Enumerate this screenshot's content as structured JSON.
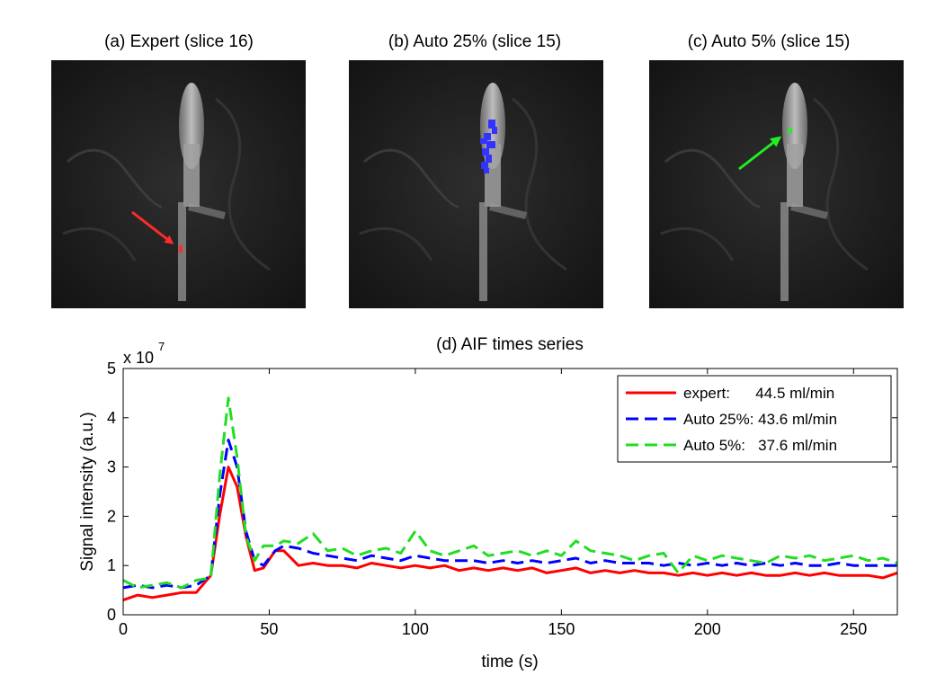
{
  "panels": [
    {
      "title": "(a) Expert (slice 16)",
      "roi_color": "#ff2a2a",
      "arrow_color": "#ff2a2a"
    },
    {
      "title": "(b) Auto 25% (slice 15)",
      "roi_color": "#3333ff"
    },
    {
      "title": "(c) Auto 5% (slice 15)",
      "roi_color": "#22ee22",
      "arrow_color": "#22ee22"
    }
  ],
  "chart_data": {
    "type": "line",
    "title": "(d) AIF times series",
    "xlabel": "time (s)",
    "ylabel": "Signal intensity (a.u.)",
    "y_multiplier": "x 10",
    "y_exponent": "7",
    "xlim": [
      0,
      265
    ],
    "ylim": [
      0,
      5
    ],
    "xticks": [
      0,
      50,
      100,
      150,
      200,
      250
    ],
    "yticks": [
      0,
      1,
      2,
      3,
      4,
      5
    ],
    "x": [
      0,
      5,
      10,
      15,
      20,
      25,
      30,
      33,
      36,
      39,
      42,
      45,
      48,
      52,
      55,
      60,
      65,
      70,
      75,
      80,
      85,
      90,
      95,
      100,
      105,
      110,
      115,
      120,
      125,
      130,
      135,
      140,
      145,
      150,
      155,
      160,
      165,
      170,
      175,
      180,
      185,
      190,
      195,
      200,
      205,
      210,
      215,
      220,
      225,
      230,
      235,
      240,
      245,
      250,
      255,
      260,
      265
    ],
    "series": [
      {
        "name": "expert:",
        "legend": "expert:      44.5 ml/min",
        "color": "#ff0000",
        "dash": "solid",
        "values": [
          0.3,
          0.4,
          0.35,
          0.4,
          0.45,
          0.45,
          0.8,
          2.0,
          3.0,
          2.6,
          1.6,
          0.9,
          0.95,
          1.3,
          1.3,
          1.0,
          1.05,
          1.0,
          1.0,
          0.95,
          1.05,
          1.0,
          0.95,
          1.0,
          0.95,
          1.0,
          0.9,
          0.95,
          0.9,
          0.95,
          0.9,
          0.95,
          0.85,
          0.9,
          0.95,
          0.85,
          0.9,
          0.85,
          0.9,
          0.85,
          0.85,
          0.8,
          0.85,
          0.8,
          0.85,
          0.8,
          0.85,
          0.8,
          0.8,
          0.85,
          0.8,
          0.85,
          0.8,
          0.8,
          0.8,
          0.75,
          0.85
        ]
      },
      {
        "name": "Auto 25%:",
        "legend": "Auto 25%: 43.6 ml/min",
        "color": "#0000ff",
        "dash": "dashed",
        "values": [
          0.55,
          0.6,
          0.55,
          0.6,
          0.55,
          0.6,
          0.8,
          2.4,
          3.55,
          3.0,
          1.7,
          1.1,
          1.0,
          1.3,
          1.4,
          1.35,
          1.25,
          1.2,
          1.15,
          1.1,
          1.2,
          1.15,
          1.1,
          1.2,
          1.15,
          1.1,
          1.1,
          1.1,
          1.05,
          1.1,
          1.05,
          1.1,
          1.05,
          1.1,
          1.15,
          1.05,
          1.1,
          1.05,
          1.05,
          1.05,
          1.0,
          1.05,
          1.0,
          1.05,
          1.0,
          1.05,
          1.0,
          1.05,
          1.0,
          1.05,
          1.0,
          1.0,
          1.05,
          1.0,
          1.0,
          1.0,
          1.0
        ]
      },
      {
        "name": "Auto 5%:",
        "legend": "Auto 5%:   37.6 ml/min",
        "color": "#22dd22",
        "dash": "dashed",
        "values": [
          0.7,
          0.55,
          0.6,
          0.65,
          0.55,
          0.7,
          0.75,
          2.8,
          4.4,
          3.2,
          1.6,
          1.1,
          1.4,
          1.4,
          1.5,
          1.45,
          1.65,
          1.3,
          1.35,
          1.2,
          1.3,
          1.35,
          1.25,
          1.7,
          1.3,
          1.2,
          1.3,
          1.4,
          1.2,
          1.25,
          1.3,
          1.2,
          1.3,
          1.2,
          1.5,
          1.3,
          1.25,
          1.2,
          1.1,
          1.2,
          1.25,
          0.85,
          1.2,
          1.1,
          1.2,
          1.15,
          1.1,
          1.05,
          1.2,
          1.15,
          1.2,
          1.1,
          1.15,
          1.2,
          1.1,
          1.15,
          1.05
        ]
      }
    ]
  }
}
